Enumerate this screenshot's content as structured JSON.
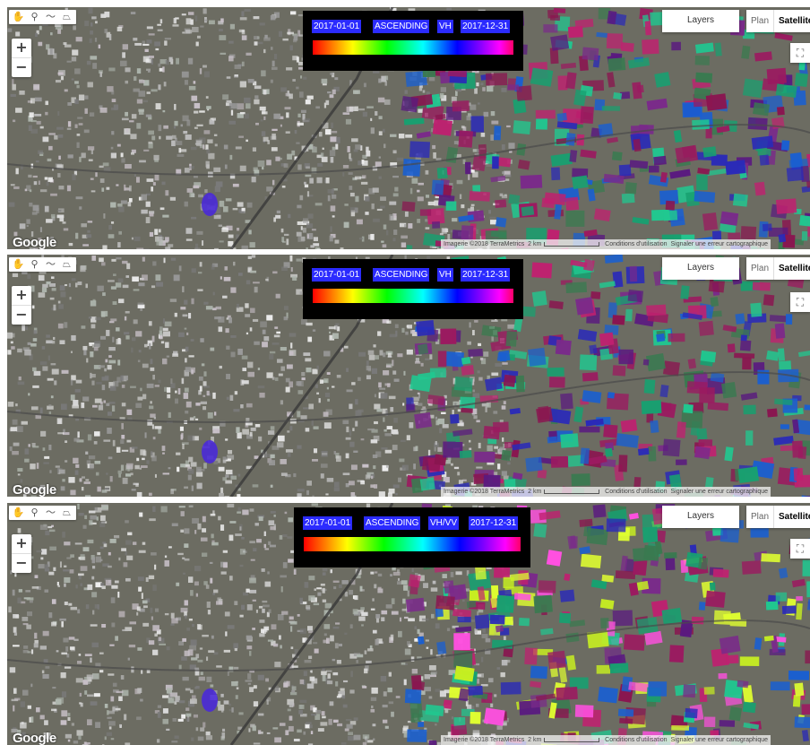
{
  "draw_tools": [
    "hand-icon",
    "marker-icon",
    "line-icon",
    "polygon-icon"
  ],
  "zoom": {
    "in": "+",
    "out": "−"
  },
  "map_type": {
    "plan": "Plan",
    "satellite": "Satellite",
    "active": "Satellite"
  },
  "layers_label": "Layers",
  "fullscreen_glyph": "⛶",
  "google_logo": "Google",
  "attribution": {
    "imagery": "Imagerie ©2018 TerraMetrics",
    "scale": "2 km",
    "terms": "Conditions d'utilisation",
    "report": "Signaler une erreur cartographique"
  },
  "colors": {
    "legend_label_bg": "#2b2bff",
    "legend_bg": "#000000"
  },
  "panels": [
    {
      "start": "2017-01-01",
      "orbit": "ASCENDING",
      "polarization": "VH",
      "end": "2017-12-31"
    },
    {
      "start": "2017-01-01",
      "orbit": "ASCENDING",
      "polarization": "VH",
      "end": "2017-12-31"
    },
    {
      "start": "2017-01-01",
      "orbit": "ASCENDING",
      "polarization": "VH/VV",
      "end": "2017-12-31"
    }
  ]
}
